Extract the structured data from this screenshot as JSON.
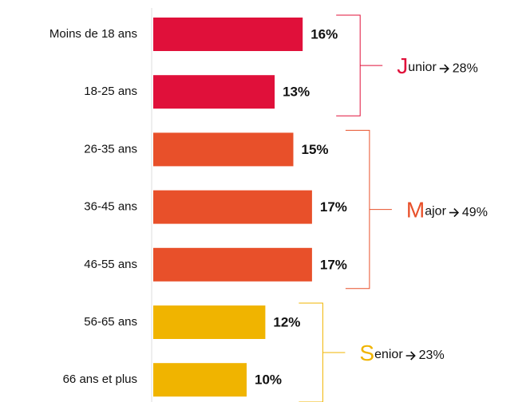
{
  "chart_data": {
    "type": "bar",
    "orientation": "horizontal",
    "categories": [
      "Moins de 18 ans",
      "18-25 ans",
      "26-35 ans",
      "36-45 ans",
      "46-55 ans",
      "56-65 ans",
      "66 ans et plus"
    ],
    "values": [
      16,
      13,
      15,
      17,
      17,
      12,
      10
    ],
    "value_labels": [
      "16%",
      "13%",
      "15%",
      "17%",
      "17%",
      "12%",
      "10%"
    ],
    "groups": [
      {
        "name": "Junior",
        "value": 28,
        "value_label": "28%",
        "color": "#e0103a",
        "categories": [
          "Moins de 18 ans",
          "18-25 ans"
        ]
      },
      {
        "name": "Major",
        "value": 49,
        "value_label": "49%",
        "color": "#e8502a",
        "categories": [
          "26-35 ans",
          "36-45 ans",
          "46-55 ans"
        ]
      },
      {
        "name": "Senior",
        "value": 23,
        "value_label": "23%",
        "color": "#f0b400",
        "categories": [
          "56-65 ans",
          "66 ans et plus"
        ]
      }
    ]
  }
}
